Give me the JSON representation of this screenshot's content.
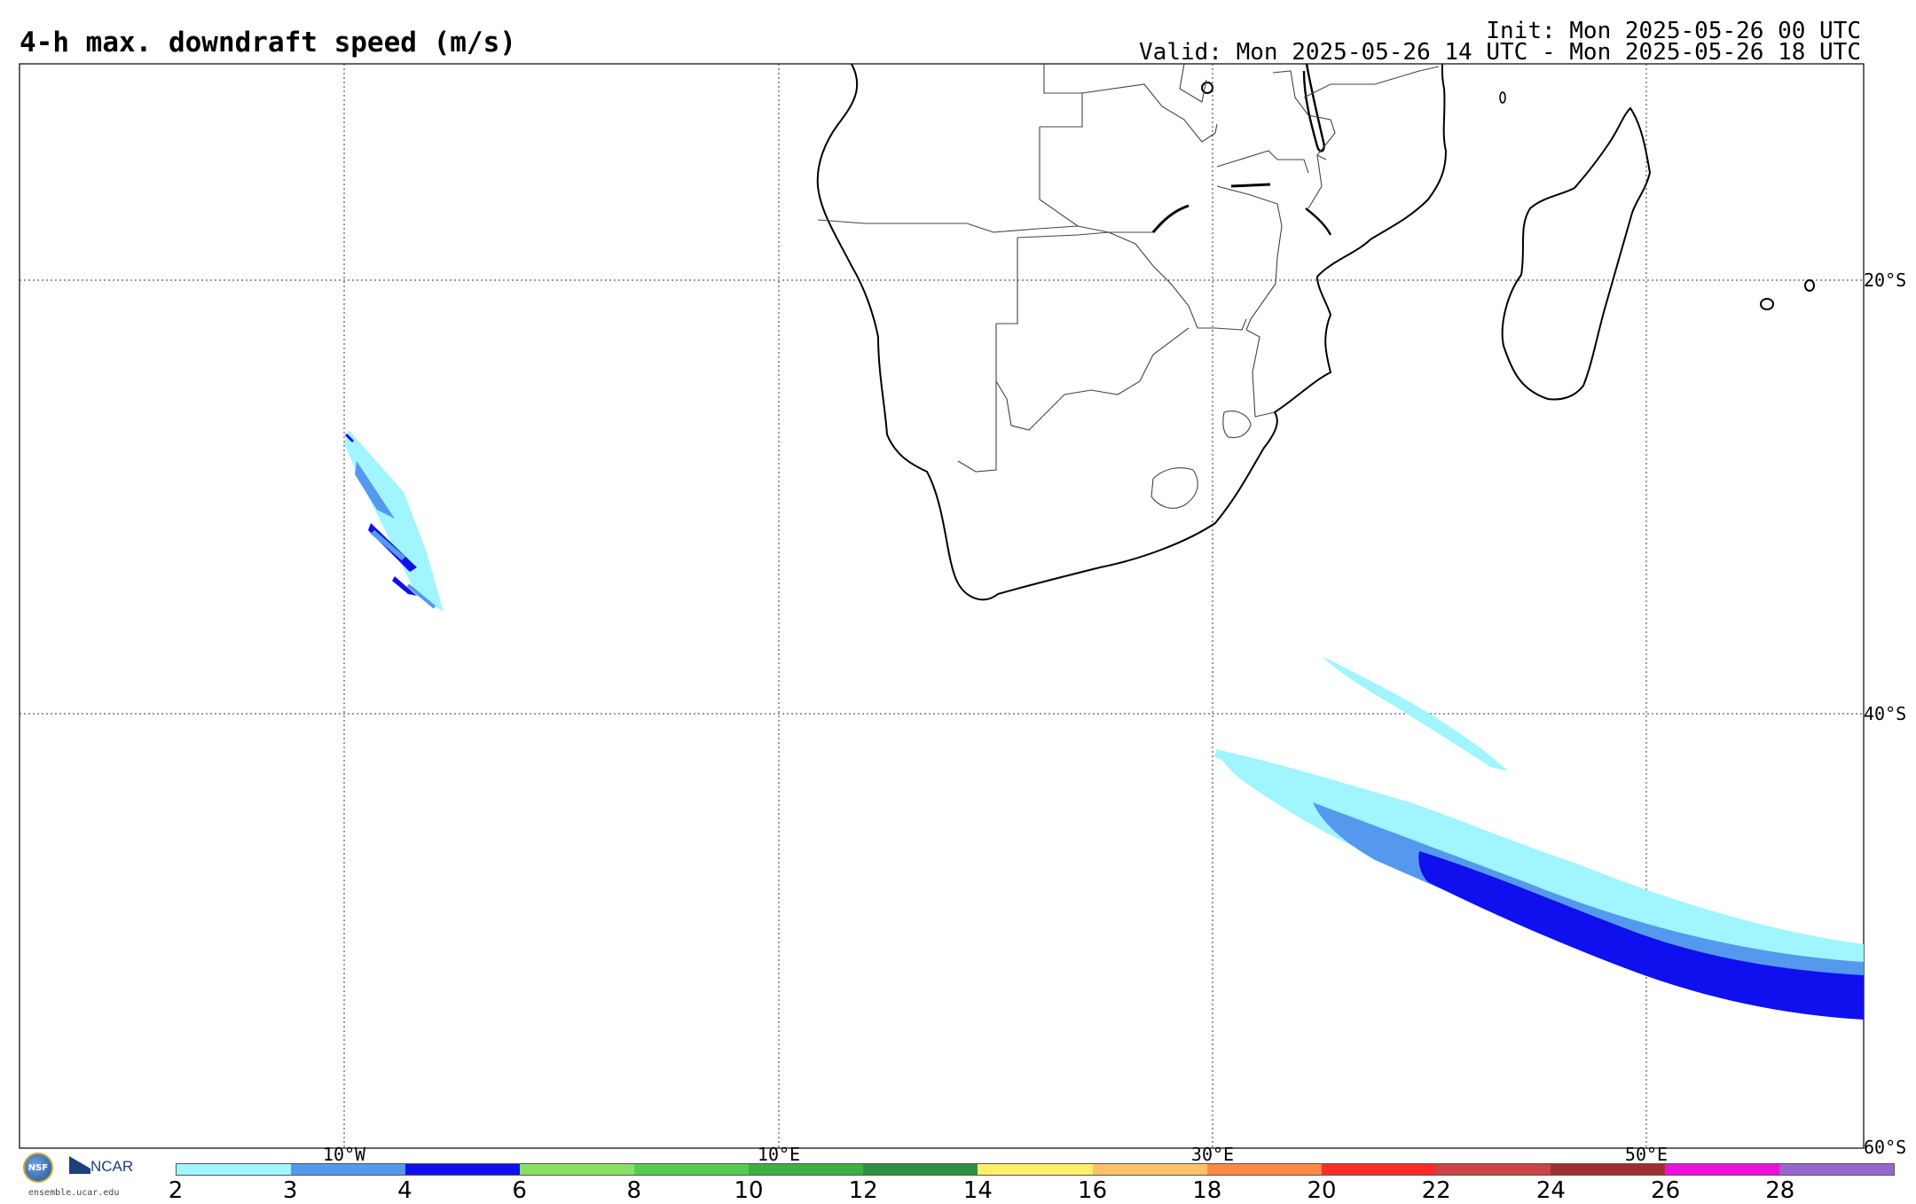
{
  "header": {
    "title": "4-h max. downdraft speed (m/s)",
    "init": "Init: Mon 2025-05-26 00 UTC",
    "valid": "Valid: Mon 2025-05-26 14 UTC - Mon 2025-05-26 18 UTC"
  },
  "map": {
    "lon_labels": [
      "10°W",
      "10°E",
      "30°E",
      "50°E"
    ],
    "lat_labels": [
      "20°S",
      "40°S",
      "60°S"
    ],
    "land_color": "#ffffff",
    "ocean_color": "#ffffff",
    "gridline_style": "dotted"
  },
  "colorbar": {
    "ticks": [
      "2",
      "3",
      "4",
      "6",
      "8",
      "10",
      "12",
      "14",
      "16",
      "18",
      "20",
      "22",
      "24",
      "26",
      "28"
    ],
    "colors": [
      "#a0f5ff",
      "#5599ee",
      "#1010ee",
      "#88e060",
      "#55cc50",
      "#3cb043",
      "#2b9140",
      "#fff066",
      "#ffc066",
      "#ff8844",
      "#ff2a2a",
      "#cc4444",
      "#a03030",
      "#ee11dd",
      "#9966cc"
    ]
  },
  "logos": {
    "nsf_label": "NSF",
    "ncar_label": "NCAR",
    "site": "ensemble.ucar.edu"
  }
}
